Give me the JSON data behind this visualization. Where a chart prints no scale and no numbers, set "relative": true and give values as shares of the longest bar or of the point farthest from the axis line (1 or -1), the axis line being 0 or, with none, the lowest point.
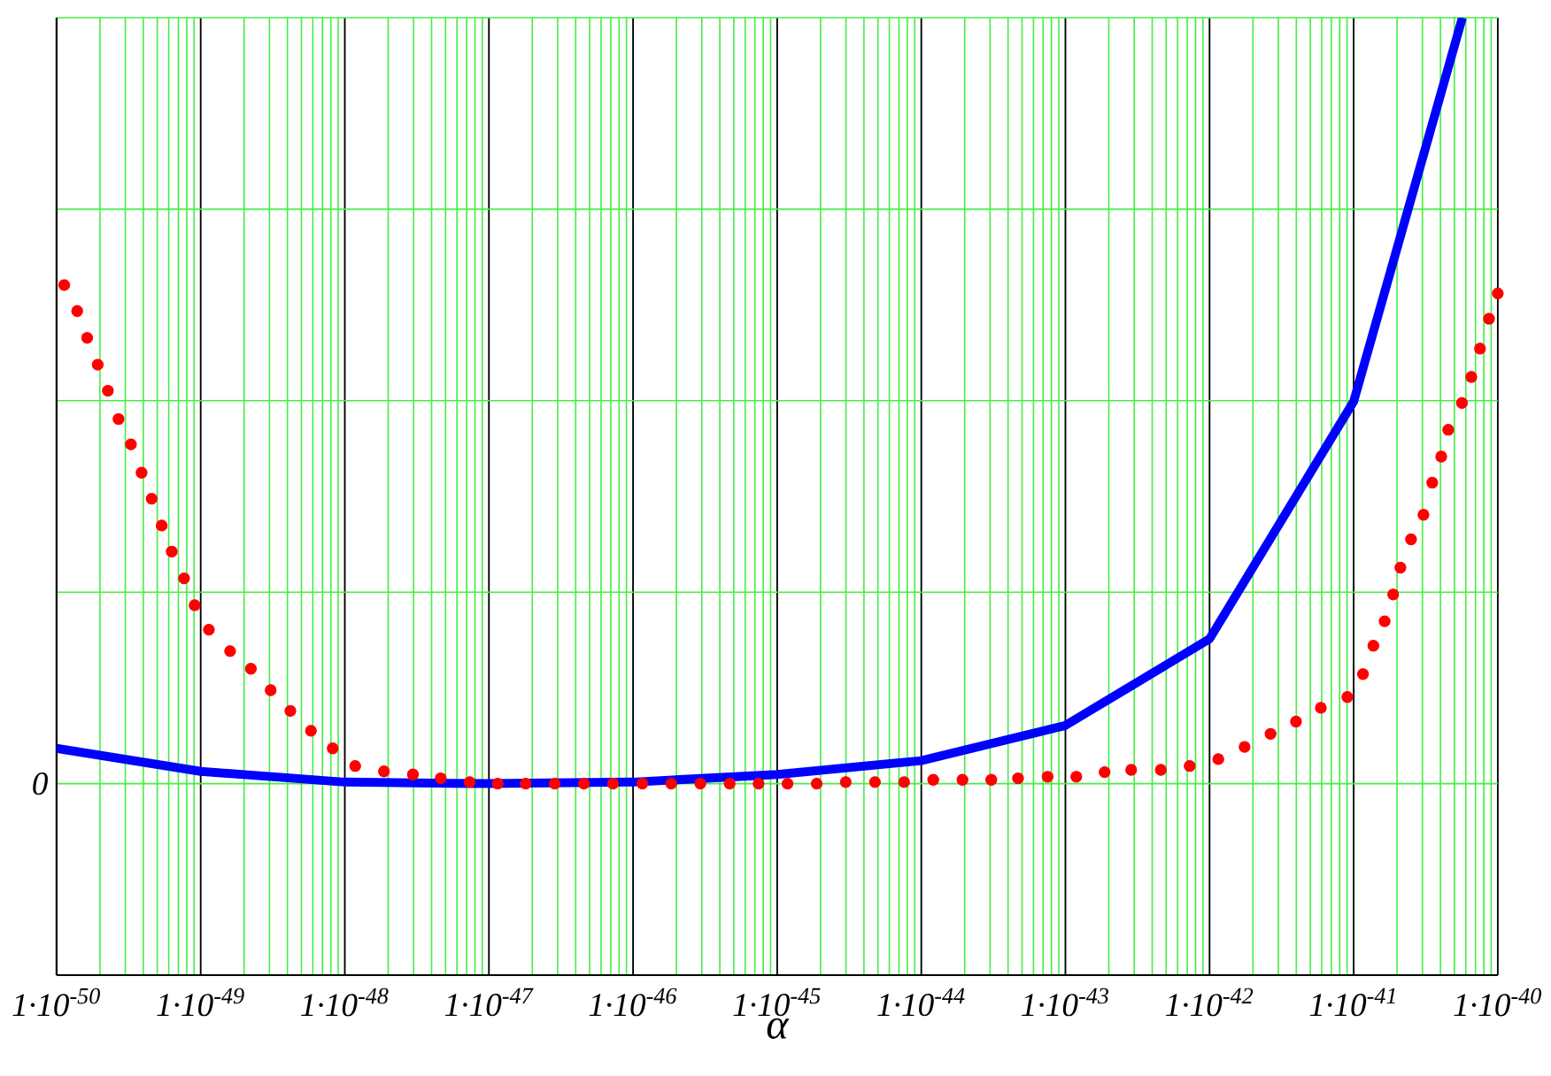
{
  "chart_data": {
    "type": "line",
    "xlabel": "α",
    "log": "x",
    "grid": true,
    "relative": true,
    "xlim": [
      1e-50,
      1e-40
    ],
    "xticks": [
      {
        "value": 1e-50,
        "label": "1·10$^{-50}$"
      },
      {
        "value": 1e-49,
        "label": "1·10$^{-49}$"
      },
      {
        "value": 1e-48,
        "label": "1·10$^{-48}$"
      },
      {
        "value": 1e-47,
        "label": "1·10$^{-47}$"
      },
      {
        "value": 1e-46,
        "label": "1·10$^{-46}$"
      },
      {
        "value": 1e-45,
        "label": "1·10$^{-45}$"
      },
      {
        "value": 1e-44,
        "label": "1·10$^{-44}$"
      },
      {
        "value": 1e-43,
        "label": "1·10$^{-43}$"
      },
      {
        "value": 1e-42,
        "label": "1·10$^{-42}$"
      },
      {
        "value": 1e-41,
        "label": "1·10$^{-41}$"
      },
      {
        "value": 1e-40,
        "label": "1·10$^{-40}$"
      },
      {
        "value": 2e-50,
        "label": null
      },
      {
        "value": 3e-50,
        "label": null
      },
      {
        "value": 4e-50,
        "label": null
      },
      {
        "value": 5e-50,
        "label": null
      },
      {
        "value": 6e-50,
        "label": null
      },
      {
        "value": 7e-50,
        "label": null
      },
      {
        "value": 8e-50,
        "label": null
      },
      {
        "value": 9e-50,
        "label": null
      },
      {
        "value": 2e-49,
        "label": null
      },
      {
        "value": 3e-49,
        "label": null
      },
      {
        "value": 4e-49,
        "label": null
      },
      {
        "value": 5e-49,
        "label": null
      },
      {
        "value": 6e-49,
        "label": null
      },
      {
        "value": 7e-49,
        "label": null
      },
      {
        "value": 8e-49,
        "label": null
      },
      {
        "value": 9e-49,
        "label": null
      },
      {
        "value": 2e-48,
        "label": null
      },
      {
        "value": 3e-48,
        "label": null
      },
      {
        "value": 4e-48,
        "label": null
      },
      {
        "value": 5e-48,
        "label": null
      },
      {
        "value": 6e-48,
        "label": null
      },
      {
        "value": 7e-48,
        "label": null
      },
      {
        "value": 8e-48,
        "label": null
      },
      {
        "value": 9e-48,
        "label": null
      },
      {
        "value": 2e-47,
        "label": null
      },
      {
        "value": 3e-47,
        "label": null
      },
      {
        "value": 4e-47,
        "label": null
      },
      {
        "value": 5e-47,
        "label": null
      },
      {
        "value": 6e-47,
        "label": null
      },
      {
        "value": 7e-47,
        "label": null
      },
      {
        "value": 8e-47,
        "label": null
      },
      {
        "value": 9e-47,
        "label": null
      },
      {
        "value": 2e-46,
        "label": null
      },
      {
        "value": 3e-46,
        "label": null
      },
      {
        "value": 4e-46,
        "label": null
      },
      {
        "value": 5e-46,
        "label": null
      },
      {
        "value": 6e-46,
        "label": null
      },
      {
        "value": 7e-46,
        "label": null
      },
      {
        "value": 8e-46,
        "label": null
      },
      {
        "value": 9e-46,
        "label": null
      },
      {
        "value": 2e-45,
        "label": null
      },
      {
        "value": 3e-45,
        "label": null
      },
      {
        "value": 4e-45,
        "label": null
      },
      {
        "value": 5e-45,
        "label": null
      },
      {
        "value": 6e-45,
        "label": null
      },
      {
        "value": 7e-45,
        "label": null
      },
      {
        "value": 8e-45,
        "label": null
      },
      {
        "value": 9e-45,
        "label": null
      },
      {
        "value": 2e-44,
        "label": null
      },
      {
        "value": 3e-44,
        "label": null
      },
      {
        "value": 4e-44,
        "label": null
      },
      {
        "value": 5e-44,
        "label": null
      },
      {
        "value": 6e-44,
        "label": null
      },
      {
        "value": 7e-44,
        "label": null
      },
      {
        "value": 8e-44,
        "label": null
      },
      {
        "value": 9e-44,
        "label": null
      },
      {
        "value": 2e-43,
        "label": null
      },
      {
        "value": 3e-43,
        "label": null
      },
      {
        "value": 4e-43,
        "label": null
      },
      {
        "value": 5e-43,
        "label": null
      },
      {
        "value": 6e-43,
        "label": null
      },
      {
        "value": 7e-43,
        "label": null
      },
      {
        "value": 8e-43,
        "label": null
      },
      {
        "value": 9e-43,
        "label": null
      },
      {
        "value": 2e-42,
        "label": null
      },
      {
        "value": 3e-42,
        "label": null
      },
      {
        "value": 4e-42,
        "label": null
      },
      {
        "value": 5e-42,
        "label": null
      },
      {
        "value": 6e-42,
        "label": null
      },
      {
        "value": 7e-42,
        "label": null
      },
      {
        "value": 8e-42,
        "label": null
      },
      {
        "value": 9e-42,
        "label": null
      },
      {
        "value": 2e-41,
        "label": null
      },
      {
        "value": 3e-41,
        "label": null
      },
      {
        "value": 4e-41,
        "label": null
      },
      {
        "value": 5e-41,
        "label": null
      },
      {
        "value": 6e-41,
        "label": null
      },
      {
        "value": 7e-41,
        "label": null
      },
      {
        "value": 8e-41,
        "label": null
      },
      {
        "value": 9e-41,
        "label": null
      }
    ],
    "annotations": [
      "0"
    ],
    "series": [
      {
        "color": "#0000ff",
        "marker": "none",
        "line_style": "solid",
        "x": [
          1e-50,
          1e-49,
          1e-48,
          1e-47,
          1e-46,
          1e-45,
          1e-44,
          1e-43,
          1e-42,
          1e-41,
          5.68e-41
        ],
        "values": [
          0.046,
          0.016,
          0.002,
          0,
          0.002,
          0.012,
          0.03,
          0.076,
          0.189,
          0.499,
          1
        ]
      },
      {
        "type": "scatter",
        "color": "#ff0000",
        "marker": "circle",
        "x": [
          1.13e-50,
          1.39e-50,
          1.63e-50,
          1.93e-50,
          2.27e-50,
          2.69e-50,
          3.28e-50,
          3.89e-50,
          4.57e-50,
          5.36e-50,
          6.3e-50,
          7.67e-50,
          9.08e-50,
          1.14e-49,
          1.6e-49,
          2.23e-49,
          3.06e-49,
          4.19e-49,
          5.82e-49,
          8.24e-49,
          1.18e-48,
          1.87e-48,
          2.97e-48,
          4.63e-48,
          7.35e-48,
          1.15e-47,
          1.8e-47,
          2.86e-47,
          4.56e-47,
          7.26e-47,
          1.16e-46,
          1.84e-46,
          2.93e-46,
          4.68e-46,
          7.43e-46,
          1.18e-45,
          1.88e-45,
          2.99e-45,
          4.77e-45,
          7.6e-45,
          1.21e-44,
          1.93e-44,
          3.06e-44,
          4.69e-44,
          7.52e-44,
          1.19e-43,
          1.87e-43,
          2.86e-43,
          4.59e-43,
          7.28e-43,
          1.15e-42,
          1.75e-42,
          2.65e-42,
          3.98e-42,
          5.92e-42,
          9.04e-42,
          1.16e-41,
          1.37e-41,
          1.64e-41,
          1.88e-41,
          2.11e-41,
          2.5e-41,
          3.05e-41,
          3.51e-41,
          4.05e-41,
          4.53e-41,
          5.64e-41,
          6.55e-41,
          7.53e-41,
          8.69e-41,
          1e-40
        ],
        "values": [
          0.651,
          0.617,
          0.582,
          0.547,
          0.513,
          0.476,
          0.443,
          0.406,
          0.372,
          0.337,
          0.303,
          0.268,
          0.233,
          0.201,
          0.173,
          0.15,
          0.122,
          0.095,
          0.069,
          0.046,
          0.023,
          0.016,
          0.012,
          0.007,
          0.002,
          0,
          0,
          0,
          0,
          0,
          0,
          0,
          0,
          0,
          0,
          0,
          0,
          0.002,
          0.002,
          0.002,
          0.005,
          0.005,
          0.005,
          0.007,
          0.009,
          0.009,
          0.015,
          0.018,
          0.018,
          0.023,
          0.032,
          0.048,
          0.065,
          0.081,
          0.099,
          0.113,
          0.143,
          0.18,
          0.212,
          0.247,
          0.282,
          0.319,
          0.351,
          0.393,
          0.427,
          0.462,
          0.497,
          0.531,
          0.568,
          0.607,
          0.64
        ]
      }
    ]
  }
}
